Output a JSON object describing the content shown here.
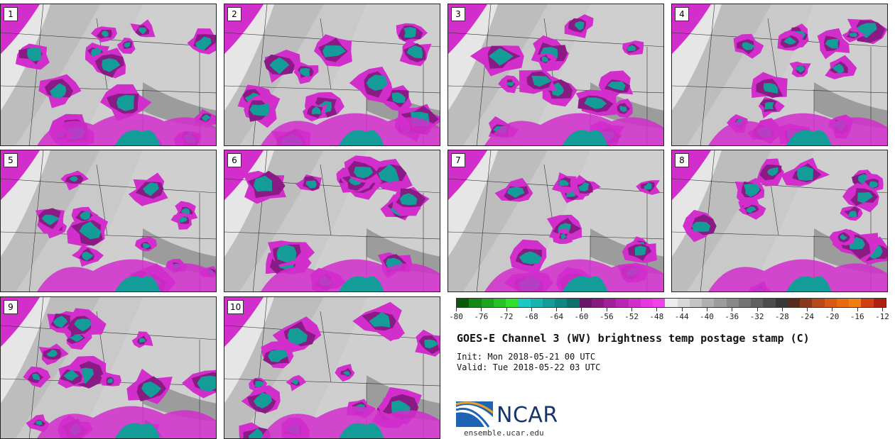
{
  "figure": {
    "title": "GOES-E Channel 3 (WV) brightness temp postage stamp (C)",
    "init": "Init: Mon 2018-05-21 00 UTC",
    "valid": "Valid: Tue 2018-05-22 03 UTC",
    "logo_text": "NCAR",
    "url": "ensemble.ucar.edu"
  },
  "panels": [
    "1",
    "2",
    "3",
    "4",
    "5",
    "6",
    "7",
    "8",
    "9",
    "10"
  ],
  "colorbar": {
    "ticks": [
      "-80",
      "-76",
      "-72",
      "-68",
      "-64",
      "-60",
      "-56",
      "-52",
      "-48",
      "-44",
      "-40",
      "-36",
      "-32",
      "-28",
      "-24",
      "-20",
      "-16",
      "-12"
    ],
    "colors": [
      "#0b5a0b",
      "#138613",
      "#1ca41c",
      "#26c226",
      "#30de30",
      "#1ac9c4",
      "#17b3ae",
      "#139c98",
      "#108683",
      "#0d706d",
      "#6c1466",
      "#861a80",
      "#a0209a",
      "#ba26b4",
      "#d22ecc",
      "#e636e0",
      "#f040ea",
      "#ececec",
      "#d8d8d8",
      "#c4c4c4",
      "#b0b0b0",
      "#9c9c9c",
      "#888888",
      "#747474",
      "#606060",
      "#4c4c4c",
      "#383838",
      "#5a2a1a",
      "#8a3a1a",
      "#b84a18",
      "#d85a14",
      "#ea6a10",
      "#f07d10",
      "#d04010",
      "#b02010"
    ]
  }
}
